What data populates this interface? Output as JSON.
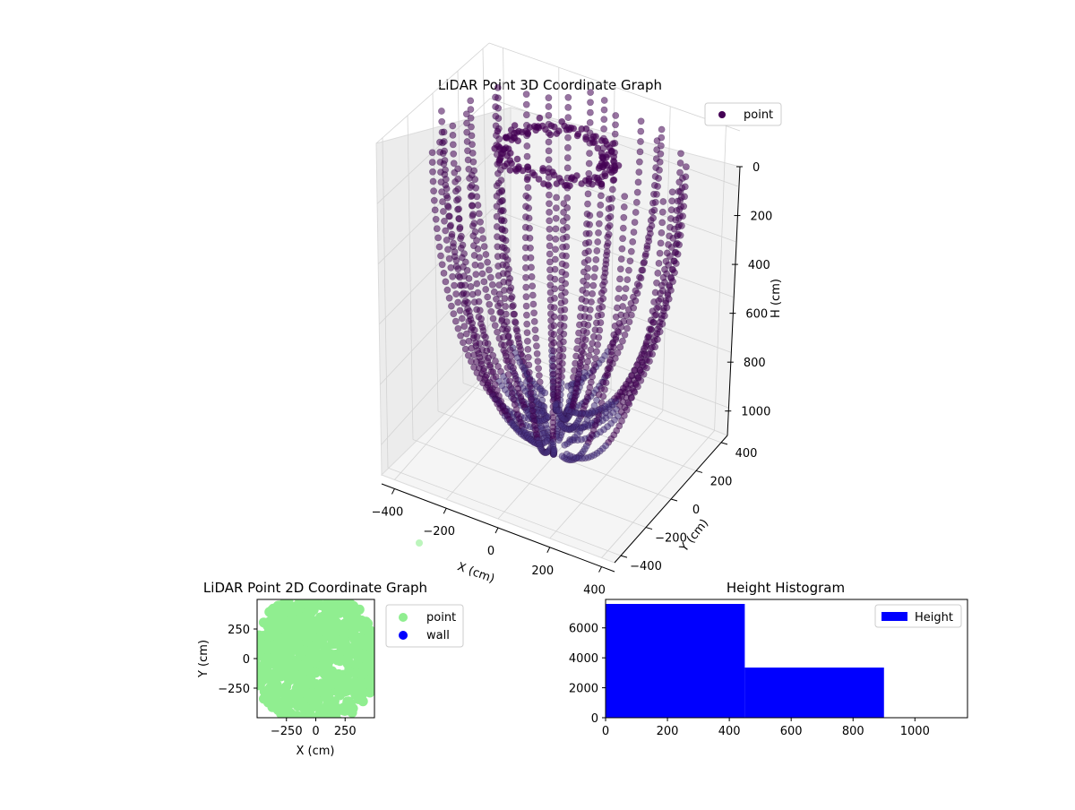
{
  "chart_data": [
    {
      "type": "scatter",
      "projection": "3d",
      "title": "LiDAR Point 3D Coordinate Graph",
      "xlabel": "X (cm)",
      "ylabel": "Y (cm)",
      "zlabel": "H (cm)",
      "xlim": [
        -450,
        450
      ],
      "ylim": [
        -450,
        450
      ],
      "zlim": [
        1100,
        0
      ],
      "x_ticks": [
        "-400",
        "-200",
        "0",
        "200",
        "400"
      ],
      "y_ticks": [
        "-400",
        "-200",
        "0",
        "200",
        "400"
      ],
      "z_ticks": [
        "0",
        "200",
        "400",
        "600",
        "800",
        "1000"
      ],
      "grid": true,
      "legend": {
        "placement": "top-right",
        "entries": [
          "point"
        ]
      },
      "series": [
        {
          "name": "point",
          "color": "#440154",
          "count_approx": 11000,
          "structure": "radial arcs of points descending from a ring near H=0 to the floor around H=800-1100"
        }
      ],
      "stray_point": {
        "x": -330,
        "y": -430,
        "z": 1100,
        "color": "#90ee90"
      }
    },
    {
      "type": "scatter",
      "title": "LiDAR Point 2D Coordinate Graph",
      "xlabel": "X (cm)",
      "ylabel": "Y (cm)",
      "xlim": [
        -500,
        500
      ],
      "ylim": [
        -500,
        500
      ],
      "x_ticks": [
        "−250",
        "0",
        "250"
      ],
      "y_ticks": [
        "−250",
        "0",
        "250"
      ],
      "legend": {
        "placement": "outside-right",
        "entries": [
          "point",
          "wall"
        ]
      },
      "series": [
        {
          "name": "point",
          "color": "#90ee90"
        },
        {
          "name": "wall",
          "color": "#0000ff"
        }
      ]
    },
    {
      "type": "bar",
      "subtype": "histogram",
      "title": "Height Histogram",
      "xlabel": "",
      "ylabel": "",
      "xlim": [
        0,
        1170
      ],
      "ylim": [
        0,
        7900
      ],
      "x_ticks": [
        "0",
        "200",
        "400",
        "600",
        "800",
        "1000"
      ],
      "y_ticks": [
        "0",
        "2000",
        "4000",
        "6000"
      ],
      "legend": {
        "placement": "top-right",
        "entries": [
          "Height"
        ]
      },
      "series": [
        {
          "name": "Height",
          "color": "#0000ff",
          "bins": [
            {
              "from": 0,
              "to": 450,
              "count": 7600
            },
            {
              "from": 450,
              "to": 900,
              "count": 3350
            }
          ]
        }
      ]
    }
  ]
}
